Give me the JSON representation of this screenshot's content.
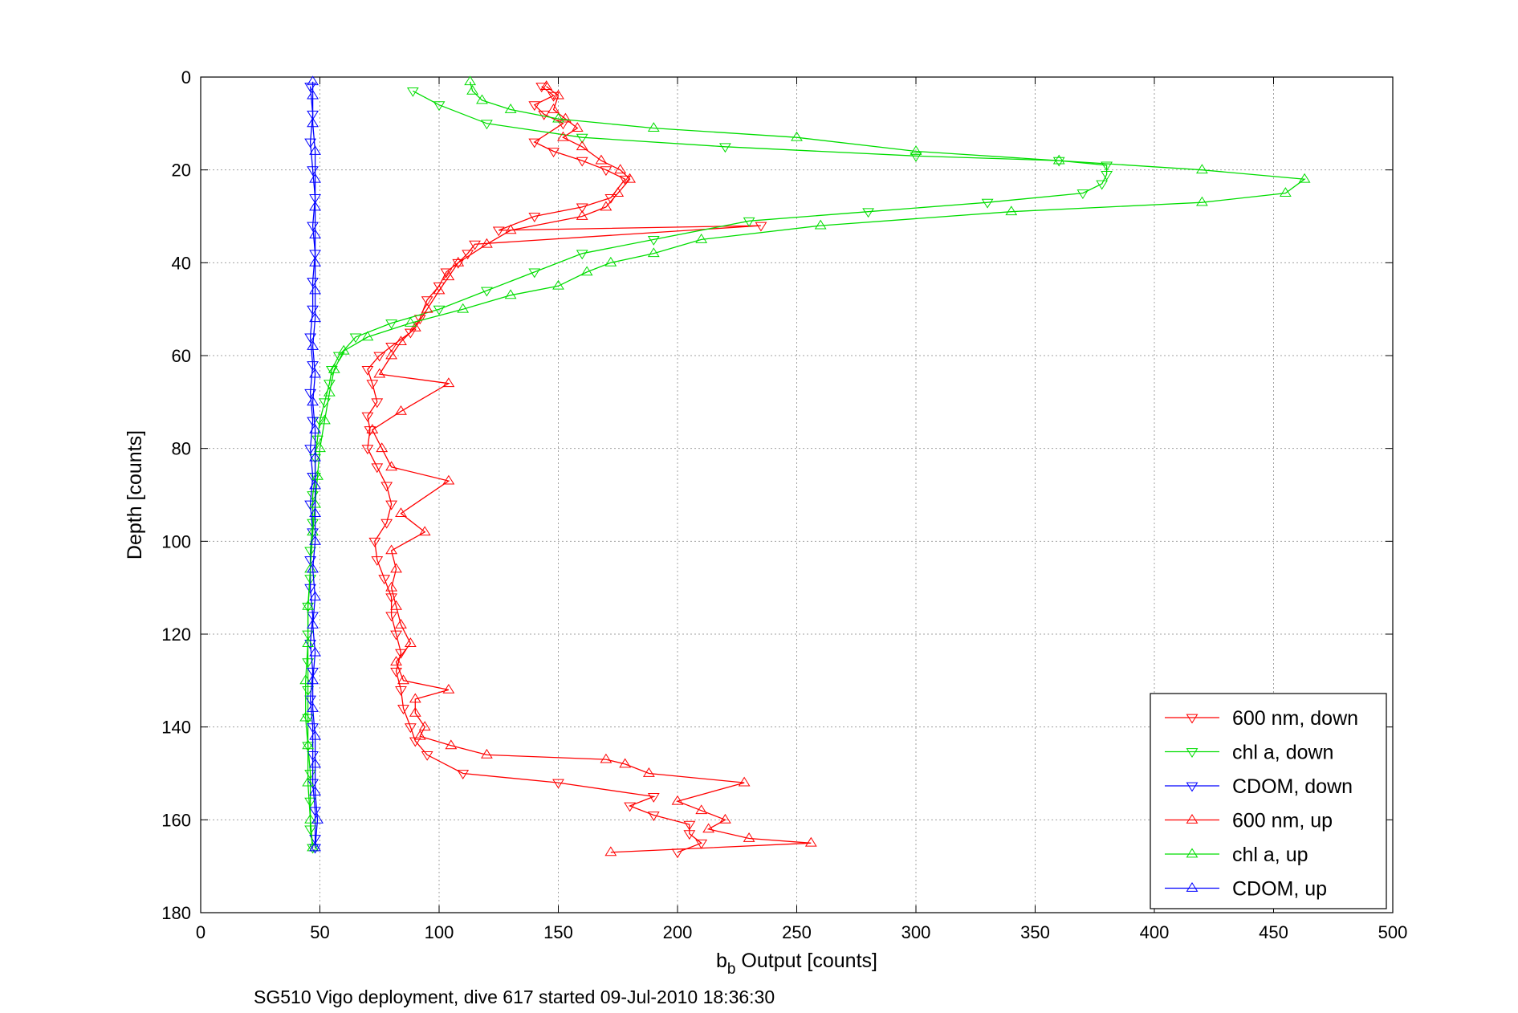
{
  "chart_data": {
    "type": "line",
    "xlabel_main": "b",
    "xlabel_sub": "b",
    "xlabel_rest": " Output [counts]",
    "ylabel": "Depth [counts]",
    "caption": "SG510 Vigo deployment, dive 617 started 09-Jul-2010 18:36:30",
    "xlim": [
      0,
      500
    ],
    "ylim": [
      0,
      180
    ],
    "y_reversed": true,
    "grid": true,
    "legend_position": "bottom-right",
    "x_ticks": [
      "0",
      "50",
      "100",
      "150",
      "200",
      "250",
      "300",
      "350",
      "400",
      "450",
      "500"
    ],
    "y_ticks": [
      "0",
      "20",
      "40",
      "60",
      "80",
      "100",
      "120",
      "140",
      "160",
      "180"
    ],
    "series": [
      {
        "name": "600 nm, down",
        "color": "#ff0000",
        "marker": "triangle-down",
        "points": [
          [
            143,
            2
          ],
          [
            148,
            4
          ],
          [
            140,
            6
          ],
          [
            144,
            8
          ],
          [
            152,
            10
          ],
          [
            140,
            14
          ],
          [
            148,
            16
          ],
          [
            160,
            18
          ],
          [
            170,
            20
          ],
          [
            178,
            22
          ],
          [
            172,
            26
          ],
          [
            160,
            28
          ],
          [
            140,
            30
          ],
          [
            125,
            33
          ],
          [
            235,
            32
          ],
          [
            115,
            36
          ],
          [
            112,
            38
          ],
          [
            108,
            40
          ],
          [
            103,
            42
          ],
          [
            100,
            45
          ],
          [
            95,
            48
          ],
          [
            92,
            52
          ],
          [
            88,
            55
          ],
          [
            80,
            58
          ],
          [
            75,
            60
          ],
          [
            70,
            63
          ],
          [
            72,
            66
          ],
          [
            74,
            70
          ],
          [
            70,
            73
          ],
          [
            71,
            76
          ],
          [
            70,
            80
          ],
          [
            74,
            84
          ],
          [
            78,
            88
          ],
          [
            80,
            92
          ],
          [
            78,
            96
          ],
          [
            73,
            100
          ],
          [
            74,
            104
          ],
          [
            77,
            108
          ],
          [
            80,
            112
          ],
          [
            80,
            116
          ],
          [
            82,
            120
          ],
          [
            84,
            124
          ],
          [
            82,
            128
          ],
          [
            84,
            132
          ],
          [
            85,
            136
          ],
          [
            88,
            140
          ],
          [
            90,
            143
          ],
          [
            95,
            146
          ],
          [
            110,
            150
          ],
          [
            150,
            152
          ],
          [
            190,
            155
          ],
          [
            180,
            157
          ],
          [
            190,
            159
          ],
          [
            205,
            161
          ],
          [
            205,
            163
          ],
          [
            210,
            165
          ],
          [
            200,
            167
          ]
        ]
      },
      {
        "name": "chl a, down",
        "color": "#00dd00",
        "marker": "triangle-down",
        "points": [
          [
            89,
            3
          ],
          [
            100,
            6
          ],
          [
            120,
            10
          ],
          [
            160,
            13
          ],
          [
            220,
            15
          ],
          [
            300,
            17
          ],
          [
            360,
            18
          ],
          [
            380,
            19
          ],
          [
            380,
            21
          ],
          [
            378,
            23
          ],
          [
            370,
            25
          ],
          [
            330,
            27
          ],
          [
            280,
            29
          ],
          [
            230,
            31
          ],
          [
            190,
            35
          ],
          [
            160,
            38
          ],
          [
            140,
            42
          ],
          [
            120,
            46
          ],
          [
            100,
            50
          ],
          [
            80,
            53
          ],
          [
            65,
            56
          ],
          [
            58,
            60
          ],
          [
            55,
            63
          ],
          [
            54,
            66
          ],
          [
            52,
            70
          ],
          [
            50,
            74
          ],
          [
            49,
            78
          ],
          [
            48,
            82
          ],
          [
            48,
            86
          ],
          [
            47,
            90
          ],
          [
            47,
            96
          ],
          [
            46,
            102
          ],
          [
            46,
            108
          ],
          [
            45,
            114
          ],
          [
            45,
            120
          ],
          [
            45,
            126
          ],
          [
            45,
            132
          ],
          [
            45,
            138
          ],
          [
            45,
            144
          ],
          [
            46,
            150
          ],
          [
            46,
            156
          ],
          [
            46,
            162
          ],
          [
            47,
            166
          ]
        ]
      },
      {
        "name": "CDOM, down",
        "color": "#0000ff",
        "marker": "triangle-down",
        "points": [
          [
            46,
            2
          ],
          [
            47,
            8
          ],
          [
            46,
            14
          ],
          [
            47,
            20
          ],
          [
            48,
            26
          ],
          [
            47,
            32
          ],
          [
            48,
            38
          ],
          [
            47,
            44
          ],
          [
            47,
            50
          ],
          [
            46,
            56
          ],
          [
            47,
            62
          ],
          [
            46,
            68
          ],
          [
            47,
            74
          ],
          [
            46,
            80
          ],
          [
            47,
            86
          ],
          [
            46,
            92
          ],
          [
            47,
            98
          ],
          [
            46,
            104
          ],
          [
            46,
            110
          ],
          [
            47,
            116
          ],
          [
            46,
            122
          ],
          [
            47,
            128
          ],
          [
            46,
            134
          ],
          [
            47,
            140
          ],
          [
            47,
            146
          ],
          [
            47,
            152
          ],
          [
            48,
            158
          ],
          [
            48,
            164
          ],
          [
            48,
            166
          ]
        ]
      },
      {
        "name": "600 nm, up",
        "color": "#ff0000",
        "marker": "triangle-up",
        "points": [
          [
            172,
            167
          ],
          [
            256,
            165
          ],
          [
            230,
            164
          ],
          [
            213,
            162
          ],
          [
            220,
            160
          ],
          [
            210,
            158
          ],
          [
            200,
            156
          ],
          [
            228,
            152
          ],
          [
            188,
            150
          ],
          [
            178,
            148
          ],
          [
            170,
            147
          ],
          [
            120,
            146
          ],
          [
            105,
            144
          ],
          [
            92,
            142
          ],
          [
            94,
            140
          ],
          [
            90,
            137
          ],
          [
            90,
            134
          ],
          [
            104,
            132
          ],
          [
            85,
            130
          ],
          [
            82,
            126
          ],
          [
            88,
            122
          ],
          [
            84,
            118
          ],
          [
            82,
            114
          ],
          [
            80,
            110
          ],
          [
            82,
            106
          ],
          [
            80,
            102
          ],
          [
            94,
            98
          ],
          [
            84,
            94
          ],
          [
            104,
            87
          ],
          [
            80,
            84
          ],
          [
            76,
            80
          ],
          [
            72,
            76
          ],
          [
            84,
            72
          ],
          [
            104,
            66
          ],
          [
            75,
            64
          ],
          [
            80,
            60
          ],
          [
            84,
            57
          ],
          [
            90,
            54
          ],
          [
            95,
            50
          ],
          [
            100,
            46
          ],
          [
            104,
            43
          ],
          [
            108,
            40
          ],
          [
            120,
            36
          ],
          [
            130,
            33
          ],
          [
            160,
            30
          ],
          [
            170,
            28
          ],
          [
            175,
            25
          ],
          [
            180,
            22
          ],
          [
            176,
            20
          ],
          [
            168,
            18
          ],
          [
            160,
            15
          ],
          [
            152,
            13
          ],
          [
            158,
            11
          ],
          [
            153,
            9
          ],
          [
            148,
            7
          ],
          [
            150,
            4
          ],
          [
            145,
            2
          ]
        ]
      },
      {
        "name": "chl a, up",
        "color": "#00dd00",
        "marker": "triangle-up",
        "points": [
          [
            47,
            166
          ],
          [
            46,
            160
          ],
          [
            45,
            152
          ],
          [
            45,
            144
          ],
          [
            44,
            138
          ],
          [
            44,
            130
          ],
          [
            45,
            122
          ],
          [
            45,
            114
          ],
          [
            46,
            106
          ],
          [
            47,
            98
          ],
          [
            48,
            92
          ],
          [
            49,
            86
          ],
          [
            50,
            80
          ],
          [
            52,
            74
          ],
          [
            54,
            68
          ],
          [
            56,
            63
          ],
          [
            60,
            59
          ],
          [
            70,
            56
          ],
          [
            88,
            53
          ],
          [
            110,
            50
          ],
          [
            130,
            47
          ],
          [
            150,
            45
          ],
          [
            162,
            42
          ],
          [
            172,
            40
          ],
          [
            190,
            38
          ],
          [
            210,
            35
          ],
          [
            260,
            32
          ],
          [
            340,
            29
          ],
          [
            420,
            27
          ],
          [
            455,
            25
          ],
          [
            463,
            22
          ],
          [
            420,
            20
          ],
          [
            360,
            18
          ],
          [
            300,
            16
          ],
          [
            250,
            13
          ],
          [
            190,
            11
          ],
          [
            150,
            9
          ],
          [
            130,
            7
          ],
          [
            118,
            5
          ],
          [
            114,
            3
          ],
          [
            113,
            1
          ]
        ]
      },
      {
        "name": "CDOM, up",
        "color": "#0000ff",
        "marker": "triangle-up",
        "points": [
          [
            48,
            166
          ],
          [
            49,
            160
          ],
          [
            48,
            154
          ],
          [
            48,
            148
          ],
          [
            48,
            142
          ],
          [
            47,
            136
          ],
          [
            47,
            130
          ],
          [
            48,
            124
          ],
          [
            47,
            118
          ],
          [
            48,
            112
          ],
          [
            47,
            106
          ],
          [
            48,
            100
          ],
          [
            48,
            94
          ],
          [
            48,
            88
          ],
          [
            48,
            82
          ],
          [
            48,
            76
          ],
          [
            47,
            70
          ],
          [
            48,
            64
          ],
          [
            47,
            58
          ],
          [
            48,
            52
          ],
          [
            48,
            46
          ],
          [
            48,
            40
          ],
          [
            48,
            34
          ],
          [
            48,
            28
          ],
          [
            48,
            22
          ],
          [
            48,
            16
          ],
          [
            47,
            10
          ],
          [
            47,
            4
          ],
          [
            47,
            1
          ]
        ]
      }
    ]
  }
}
